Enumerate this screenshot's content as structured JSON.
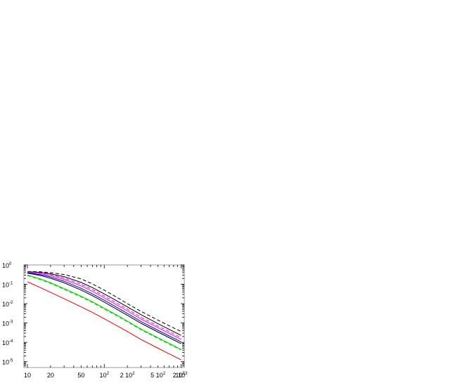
{
  "chart_data": {
    "type": "line",
    "title": "",
    "xlabel": "",
    "ylabel": "",
    "x_scale": "log",
    "y_scale": "log",
    "xlim": [
      9,
      1100
    ],
    "ylim": [
      5e-06,
      1.0
    ],
    "grid": false,
    "legend": "none",
    "x_ticks": [
      {
        "value": 10,
        "base": "10",
        "exp": ""
      },
      {
        "value": 20,
        "base": "20",
        "exp": ""
      },
      {
        "value": 50,
        "base": "50",
        "exp": ""
      },
      {
        "value": 100,
        "base": "10",
        "exp": "2"
      },
      {
        "value": 200,
        "base": "2 10",
        "exp": "2"
      },
      {
        "value": 500,
        "base": "5 10",
        "exp": "2"
      },
      {
        "value": 1000,
        "base": "10",
        "exp": "3"
      },
      {
        "value": 2000,
        "base": "2 10",
        "exp": "3"
      }
    ],
    "y_ticks": [
      {
        "value": 1,
        "base": "10",
        "exp": "0"
      },
      {
        "value": 0.1,
        "base": "10",
        "exp": "-1"
      },
      {
        "value": 0.01,
        "base": "10",
        "exp": "-2"
      },
      {
        "value": 0.001,
        "base": "10",
        "exp": "-3"
      },
      {
        "value": 0.0001,
        "base": "10",
        "exp": "-4"
      },
      {
        "value": 1e-05,
        "base": "10",
        "exp": "-5"
      }
    ],
    "x": [
      10,
      15,
      20,
      30,
      50,
      70,
      100,
      150,
      200,
      300,
      500,
      700,
      1000
    ],
    "series": [
      {
        "color": "#000000",
        "dash": "5,3",
        "values": [
          0.46,
          0.44,
          0.4,
          0.32,
          0.19,
          0.105,
          0.05,
          0.02,
          0.01,
          0.004,
          0.0014,
          0.00072,
          0.00036
        ]
      },
      {
        "color": "#000000",
        "dash": "",
        "values": [
          0.45,
          0.41,
          0.35,
          0.25,
          0.125,
          0.068,
          0.032,
          0.013,
          0.0068,
          0.0027,
          0.00092,
          0.00047,
          0.00023
        ]
      },
      {
        "color": "#ff00ff",
        "dash": "5,3",
        "values": [
          0.44,
          0.38,
          0.32,
          0.21,
          0.1,
          0.053,
          0.025,
          0.01,
          0.0052,
          0.002,
          0.0007,
          0.00036,
          0.000175
        ]
      },
      {
        "color": "#ff00ff",
        "dash": "",
        "values": [
          0.43,
          0.35,
          0.28,
          0.18,
          0.082,
          0.043,
          0.02,
          0.008,
          0.0042,
          0.0016,
          0.00057,
          0.00029,
          0.00014
        ]
      },
      {
        "color": "#0000ff",
        "dash": "",
        "values": [
          0.4,
          0.31,
          0.24,
          0.145,
          0.062,
          0.032,
          0.015,
          0.006,
          0.0031,
          0.0012,
          0.00042,
          0.000215,
          0.000105
        ]
      },
      {
        "color": "#000000",
        "dash": "",
        "values": [
          0.38,
          0.28,
          0.205,
          0.12,
          0.05,
          0.026,
          0.012,
          0.0048,
          0.0025,
          0.00097,
          0.00034,
          0.000174,
          8.5e-05
        ]
      },
      {
        "color": "#00cc00",
        "dash": "",
        "values": [
          0.3,
          0.185,
          0.12,
          0.06,
          0.024,
          0.0125,
          0.0058,
          0.0024,
          0.00125,
          0.00049,
          0.000172,
          8.8e-05,
          4.3e-05
        ]
      },
      {
        "color": "#00cc00",
        "dash": "5,3",
        "values": [
          0.28,
          0.17,
          0.11,
          0.055,
          0.022,
          0.0115,
          0.0053,
          0.0022,
          0.00115,
          0.00045,
          0.000158,
          8.1e-05,
          4e-05
        ]
      },
      {
        "color": "#ff0000",
        "dash": "",
        "values": [
          0.135,
          0.065,
          0.038,
          0.018,
          0.0068,
          0.0035,
          0.00165,
          0.00068,
          0.00036,
          0.00014,
          5e-05,
          2.54e-05,
          1.24e-05
        ]
      }
    ]
  }
}
